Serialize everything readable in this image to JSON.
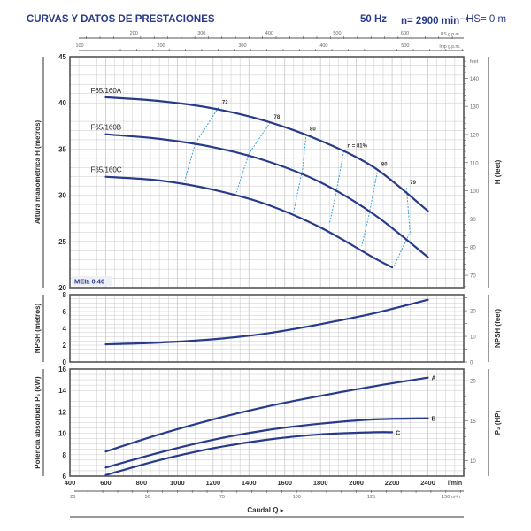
{
  "header": {
    "title": "CURVAS Y DATOS DE PRESTACIONES",
    "frequency": "50 Hz",
    "speed": "n= 2900 min⁻¹",
    "hs": "HS= 0 m"
  },
  "colors": {
    "curve": "#283a8a",
    "efficiency": "#3aa0d8",
    "grid": "#c8c8c8",
    "axis": "#555555",
    "header": "#2b3a8c"
  },
  "chart_data": [
    {
      "type": "line",
      "title": "Head curve",
      "xlabel": "Caudal Q",
      "ylabel": "Altura manométrica H (metros)",
      "ylabel_right": "H (feet)",
      "xlim": [
        400,
        2600
      ],
      "ylim": [
        20,
        45
      ],
      "y_ticks": [
        20,
        25,
        30,
        35,
        40,
        45
      ],
      "y_right_ticks": [
        70,
        80,
        90,
        100,
        110,
        120,
        130,
        140
      ],
      "y_right_unit": "feet",
      "top_axis_us": {
        "unit": "US g.p.m.",
        "ticks": [
          200,
          300,
          400,
          500,
          600
        ]
      },
      "top_axis_imp": {
        "unit": "Imp g.p.m.",
        "ticks": [
          100,
          200,
          300,
          400,
          500
        ]
      },
      "annotation": "MEI≥ 0.40",
      "grid": true,
      "series": [
        {
          "name": "F65/160A",
          "x": [
            600,
            900,
            1200,
            1500,
            1800,
            2100,
            2400
          ],
          "y": [
            40.6,
            40.2,
            39.4,
            38.0,
            35.9,
            33.0,
            28.3
          ]
        },
        {
          "name": "F65/160B",
          "x": [
            600,
            900,
            1200,
            1500,
            1800,
            2100,
            2400
          ],
          "y": [
            36.6,
            36.1,
            35.2,
            33.7,
            31.4,
            27.9,
            23.3
          ]
        },
        {
          "name": "F65/160C",
          "x": [
            600,
            900,
            1200,
            1500,
            1800,
            2100,
            2200
          ],
          "y": [
            32.0,
            31.6,
            30.6,
            29.0,
            26.5,
            23.2,
            22.2
          ]
        }
      ],
      "efficiency_lines": [
        {
          "label": "72",
          "points": [
            [
              1230,
              39.5
            ],
            [
              1100,
              35.6
            ],
            [
              1040,
              31.5
            ]
          ]
        },
        {
          "label": "78",
          "points": [
            [
              1520,
              37.9
            ],
            [
              1400,
              34.5
            ],
            [
              1330,
              30.3
            ]
          ]
        },
        {
          "label": "80",
          "points": [
            [
              1720,
              36.6
            ],
            [
              1700,
              32.9
            ],
            [
              1650,
              28.2
            ]
          ]
        },
        {
          "label": "η = 81%",
          "points": [
            [
              1930,
              34.8
            ],
            [
              1890,
              30.6
            ],
            [
              1850,
              26.9
            ]
          ]
        },
        {
          "label": "80",
          "points": [
            [
              2120,
              32.8
            ],
            [
              2070,
              27.8
            ],
            [
              2030,
              24.5
            ]
          ]
        },
        {
          "label": "79",
          "points": [
            [
              2280,
              30.8
            ],
            [
              2300,
              26.0
            ],
            [
              2210,
              22.3
            ]
          ]
        }
      ]
    },
    {
      "type": "line",
      "title": "NPSH curve",
      "ylabel": "NPSH (metros)",
      "ylabel_right": "NPSH (feet)",
      "xlim": [
        400,
        2600
      ],
      "ylim": [
        0,
        8
      ],
      "y_ticks": [
        0,
        2,
        4,
        6,
        8
      ],
      "y_right_ticks": [
        0,
        10,
        20
      ],
      "grid": true,
      "series": [
        {
          "name": "NPSH",
          "x": [
            600,
            900,
            1200,
            1500,
            1800,
            2100,
            2400
          ],
          "y": [
            2.1,
            2.3,
            2.7,
            3.4,
            4.5,
            5.8,
            7.4
          ]
        }
      ]
    },
    {
      "type": "line",
      "title": "Power curve",
      "ylabel": "Potencia absorbida P₂ (kW)",
      "ylabel_right": "P₂ (HP)",
      "xlabel": "Caudal Q",
      "xlim": [
        400,
        2600
      ],
      "ylim": [
        6,
        16
      ],
      "x_ticks": [
        400,
        600,
        800,
        1000,
        1200,
        1400,
        1600,
        1800,
        2000,
        2200,
        2400
      ],
      "x_unit": "l/min",
      "bottom_axis_m3h": {
        "unit": "m³/h",
        "ticks": [
          25,
          50,
          75,
          100,
          125,
          150
        ]
      },
      "y_ticks": [
        6,
        8,
        10,
        12,
        14,
        16
      ],
      "y_right_ticks": [
        10,
        15,
        20
      ],
      "grid": true,
      "series": [
        {
          "name": "A",
          "x": [
            600,
            900,
            1200,
            1500,
            1800,
            2100,
            2400
          ],
          "y": [
            8.3,
            9.9,
            11.3,
            12.5,
            13.5,
            14.4,
            15.2
          ]
        },
        {
          "name": "B",
          "x": [
            600,
            900,
            1200,
            1500,
            1800,
            2100,
            2400
          ],
          "y": [
            6.8,
            8.2,
            9.4,
            10.3,
            10.9,
            11.3,
            11.4
          ]
        },
        {
          "name": "C",
          "x": [
            600,
            900,
            1200,
            1500,
            1800,
            2100,
            2200
          ],
          "y": [
            6.1,
            7.5,
            8.6,
            9.4,
            9.9,
            10.1,
            10.1
          ]
        }
      ]
    }
  ]
}
